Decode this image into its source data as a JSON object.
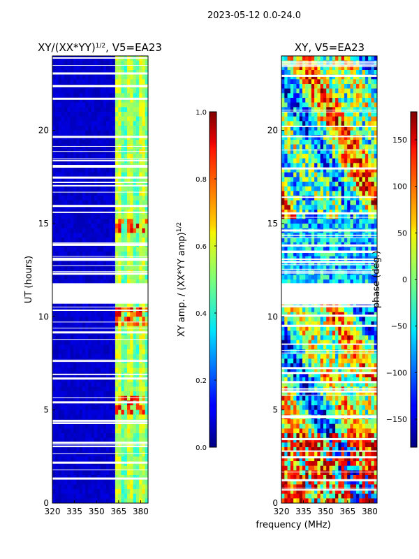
{
  "figure": {
    "suptitle": "2023-05-12 0.0-24.0",
    "xlabel": "frequency (MHz)"
  },
  "chart_data": [
    {
      "type": "heatmap",
      "title_main": "XY/(XX*YY)",
      "title_sup": "1/2",
      "title_rest": ", V5=EA23",
      "ylabel": "UT (hours)",
      "xlim": [
        320,
        385
      ],
      "ylim": [
        0,
        24
      ],
      "xticks": [
        "320",
        "335",
        "350",
        "365",
        "380"
      ],
      "yticks": [
        "0",
        "5",
        "10",
        "15",
        "20"
      ],
      "colorbar": {
        "label_main": "XY amp. / (XX*YY amp)",
        "label_sup": "1/2",
        "range": [
          0.0,
          1.0
        ],
        "ticks": [
          "0.0",
          "0.2",
          "0.4",
          "0.6",
          "0.8",
          "1.0"
        ],
        "colormap": "jet"
      },
      "gap_hours": [
        [
          10.7,
          11.8
        ]
      ]
    },
    {
      "type": "heatmap",
      "title": "XY, V5=EA23",
      "xlim": [
        320,
        385
      ],
      "ylim": [
        0,
        24
      ],
      "xticks": [
        "320",
        "335",
        "350",
        "365",
        "380"
      ],
      "yticks": [
        "0",
        "5",
        "10",
        "15",
        "20"
      ],
      "colorbar": {
        "label": "phase (deg.)",
        "range": [
          -180,
          180
        ],
        "ticks": [
          "−150",
          "−100",
          "−50",
          "0",
          "50",
          "100",
          "150"
        ],
        "colormap": "jet"
      },
      "gap_hours": [
        [
          10.7,
          11.8
        ]
      ]
    }
  ]
}
